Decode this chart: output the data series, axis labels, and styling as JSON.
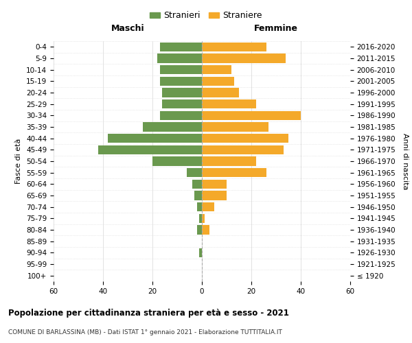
{
  "age_groups": [
    "100+",
    "95-99",
    "90-94",
    "85-89",
    "80-84",
    "75-79",
    "70-74",
    "65-69",
    "60-64",
    "55-59",
    "50-54",
    "45-49",
    "40-44",
    "35-39",
    "30-34",
    "25-29",
    "20-24",
    "15-19",
    "10-14",
    "5-9",
    "0-4"
  ],
  "birth_years": [
    "≤ 1920",
    "1921-1925",
    "1926-1930",
    "1931-1935",
    "1936-1940",
    "1941-1945",
    "1946-1950",
    "1951-1955",
    "1956-1960",
    "1961-1965",
    "1966-1970",
    "1971-1975",
    "1976-1980",
    "1981-1985",
    "1986-1990",
    "1991-1995",
    "1996-2000",
    "2001-2005",
    "2006-2010",
    "2011-2015",
    "2016-2020"
  ],
  "maschi": [
    0,
    0,
    1,
    0,
    2,
    1,
    2,
    3,
    4,
    6,
    20,
    42,
    38,
    24,
    17,
    16,
    16,
    17,
    17,
    18,
    17
  ],
  "femmine": [
    0,
    0,
    0,
    0,
    3,
    1,
    5,
    10,
    10,
    26,
    22,
    33,
    35,
    27,
    40,
    22,
    15,
    13,
    12,
    34,
    26
  ],
  "male_color": "#6a994e",
  "female_color": "#f4a92a",
  "title": "Popolazione per cittadinanza straniera per età e sesso - 2021",
  "subtitle": "COMUNE DI BARLASSINA (MB) - Dati ISTAT 1° gennaio 2021 - Elaborazione TUTTITALIA.IT",
  "legend_male": "Stranieri",
  "legend_female": "Straniere",
  "header_left": "Maschi",
  "header_right": "Femmine",
  "ylabel_left": "Fasce di età",
  "ylabel_right": "Anni di nascita",
  "xlim": 60,
  "background_color": "#ffffff",
  "grid_color": "#cccccc"
}
